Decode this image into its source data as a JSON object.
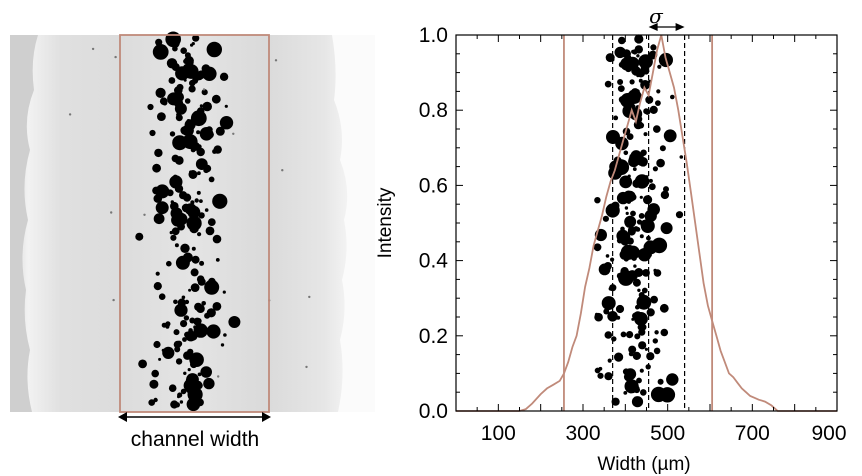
{
  "left_panel": {
    "caption": "channel width"
  },
  "chart_data": {
    "type": "line",
    "title": "",
    "xlabel": "Width (µm)",
    "ylabel": "Intensity",
    "xlim": [
      0,
      900
    ],
    "ylim": [
      0,
      1.0
    ],
    "xticks": [
      100,
      300,
      500,
      700,
      900
    ],
    "yticks": [
      0.0,
      0.2,
      0.4,
      0.6,
      0.8,
      1.0
    ],
    "xtick_labels": [
      "100",
      "300",
      "500",
      "700",
      "900"
    ],
    "ytick_labels": [
      "0.0",
      "0.2",
      "0.4",
      "0.6",
      "0.8",
      "1.0"
    ],
    "grid": false,
    "channel_edges": [
      255,
      605
    ],
    "dashed_markers": [
      370,
      455,
      540
    ],
    "sigma_label": "σ",
    "series": [
      {
        "color": "#c08a7a",
        "x": [
          0,
          150,
          165,
          180,
          200,
          215,
          230,
          245,
          255,
          265,
          275,
          285,
          295,
          305,
          315,
          325,
          335,
          345,
          355,
          365,
          375,
          385,
          395,
          405,
          415,
          425,
          435,
          445,
          455,
          465,
          475,
          485,
          495,
          505,
          515,
          525,
          535,
          545,
          555,
          565,
          575,
          585,
          595,
          605,
          615,
          625,
          635,
          645,
          655,
          665,
          675,
          685,
          695,
          705,
          715,
          730,
          745,
          760,
          900
        ],
        "y": [
          0.0,
          0.0,
          0.005,
          0.02,
          0.045,
          0.06,
          0.07,
          0.08,
          0.1,
          0.13,
          0.17,
          0.2,
          0.26,
          0.33,
          0.38,
          0.44,
          0.48,
          0.52,
          0.57,
          0.61,
          0.64,
          0.68,
          0.72,
          0.76,
          0.8,
          0.77,
          0.82,
          0.86,
          0.84,
          0.9,
          0.96,
          1.0,
          0.94,
          0.9,
          0.86,
          0.8,
          0.73,
          0.66,
          0.58,
          0.5,
          0.42,
          0.34,
          0.28,
          0.24,
          0.2,
          0.16,
          0.13,
          0.1,
          0.09,
          0.075,
          0.06,
          0.05,
          0.04,
          0.035,
          0.03,
          0.025,
          0.015,
          0.0,
          0.0
        ]
      }
    ]
  },
  "colors": {
    "channel_box": "#c08a7a",
    "profile_line": "#c08a7a",
    "droplet": "#000000",
    "gel_background": "#e6e6e6"
  }
}
